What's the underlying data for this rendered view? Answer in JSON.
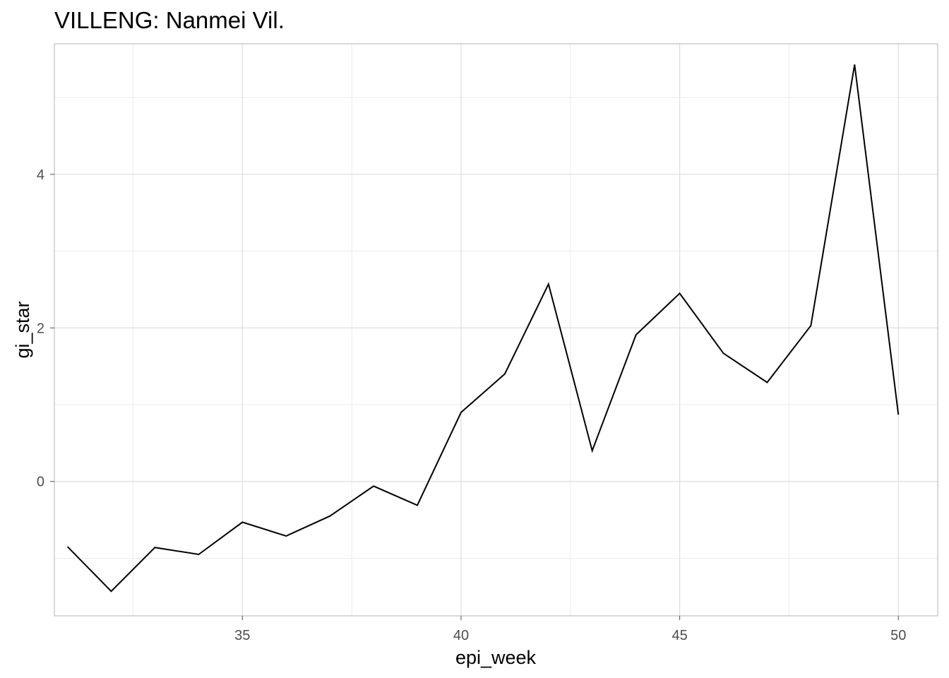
{
  "chart_data": {
    "type": "line",
    "title": "VILLENG: Nanmei Vil.",
    "xlabel": "epi_week",
    "ylabel": "gi_star",
    "xlim": [
      30.7,
      50.9
    ],
    "ylim": [
      -1.75,
      5.7
    ],
    "x_ticks": [
      35,
      40,
      45,
      50
    ],
    "y_ticks": [
      0,
      2,
      4
    ],
    "x_minor": [
      32.5,
      37.5,
      42.5,
      47.5
    ],
    "y_minor": [
      -1,
      1,
      3,
      5
    ],
    "grid": true,
    "series": [
      {
        "color": "#000000",
        "x": [
          31,
          32,
          33,
          34,
          35,
          36,
          37,
          38,
          39,
          40,
          41,
          42,
          43,
          44,
          45,
          46,
          47,
          48,
          49,
          50
        ],
        "y": [
          -0.85,
          -1.43,
          -0.86,
          -0.95,
          -0.53,
          -0.71,
          -0.45,
          -0.06,
          -0.31,
          0.9,
          1.4,
          2.57,
          0.4,
          1.91,
          2.45,
          1.67,
          1.29,
          2.03,
          5.43,
          0.87
        ]
      }
    ]
  }
}
